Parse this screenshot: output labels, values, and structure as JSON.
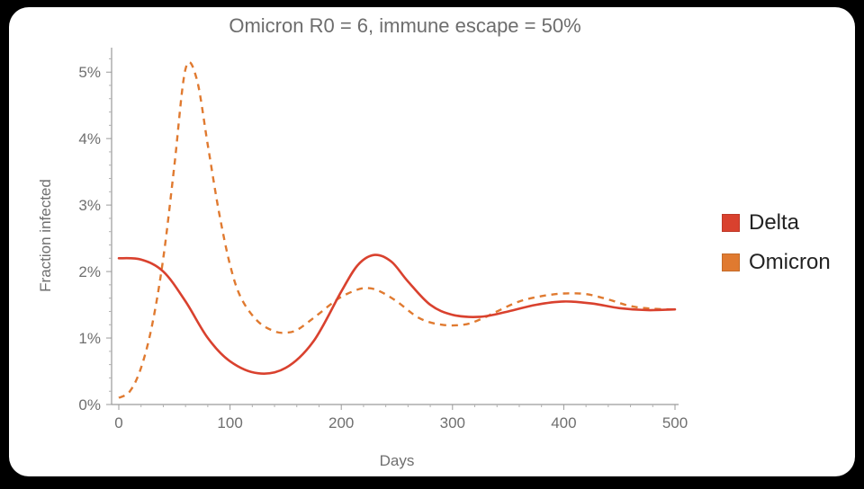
{
  "chart_data": {
    "type": "line",
    "title": "Omicron R0 = 6, immune escape = 50%",
    "xlabel": "Days",
    "ylabel": "Fraction infected",
    "xlim": [
      0,
      500
    ],
    "ylim": [
      0,
      5.3
    ],
    "xticks": [
      0,
      100,
      200,
      300,
      400,
      500
    ],
    "yticks": [
      0,
      1,
      2,
      3,
      4,
      5
    ],
    "ytick_labels": [
      "0%",
      "1%",
      "2%",
      "3%",
      "4%",
      "5%"
    ],
    "legend_position": "right",
    "series": [
      {
        "name": "Delta",
        "color": "#d9412e",
        "style": "solid",
        "x": [
          0,
          20,
          40,
          60,
          80,
          100,
          125,
          150,
          175,
          200,
          215,
          230,
          245,
          260,
          280,
          300,
          325,
          350,
          375,
          400,
          425,
          450,
          475,
          500
        ],
        "y": [
          2.2,
          2.18,
          2.0,
          1.55,
          1.0,
          0.65,
          0.47,
          0.55,
          0.95,
          1.7,
          2.1,
          2.25,
          2.15,
          1.85,
          1.5,
          1.35,
          1.32,
          1.4,
          1.5,
          1.55,
          1.52,
          1.45,
          1.42,
          1.43
        ]
      },
      {
        "name": "Omicron",
        "color": "#e07a30",
        "style": "dashed",
        "x": [
          0,
          10,
          20,
          30,
          40,
          50,
          60,
          70,
          80,
          90,
          100,
          110,
          125,
          140,
          150,
          160,
          175,
          190,
          200,
          215,
          225,
          235,
          250,
          270,
          290,
          310,
          325,
          340,
          360,
          380,
          400,
          420,
          440,
          460,
          480,
          500
        ],
        "y": [
          0.1,
          0.2,
          0.55,
          1.2,
          2.2,
          3.6,
          5.05,
          4.9,
          3.9,
          2.9,
          2.1,
          1.6,
          1.25,
          1.1,
          1.08,
          1.12,
          1.3,
          1.5,
          1.62,
          1.73,
          1.75,
          1.7,
          1.55,
          1.3,
          1.2,
          1.2,
          1.28,
          1.4,
          1.55,
          1.63,
          1.67,
          1.66,
          1.58,
          1.48,
          1.44,
          1.43
        ]
      }
    ]
  }
}
